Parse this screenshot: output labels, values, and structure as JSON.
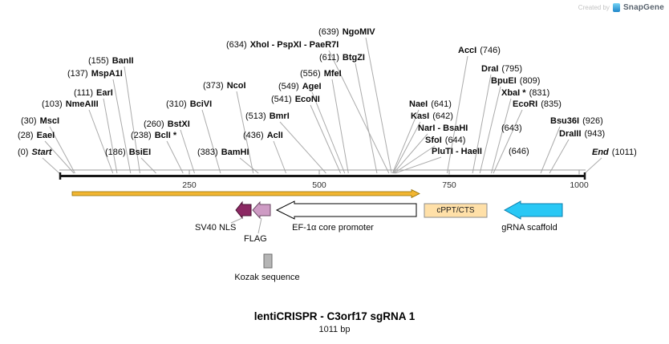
{
  "branding": {
    "created_by": "Created by",
    "brand": "SnapGene"
  },
  "title": {
    "name": "lentiCRISPR - C3orf17 sgRNA 1",
    "length": "1011 bp"
  },
  "colors": {
    "leader_line": "#ababab",
    "ruler_gray": "#9c9c9c",
    "sequence_black": "#161616",
    "tick_text": "#2e2e2e"
  },
  "map": {
    "length_bp": 1011,
    "ruler_ticks": [
      250,
      500,
      750,
      1000
    ],
    "sites": [
      {
        "bp": 0,
        "pos": "(0)",
        "name": "Start",
        "terminus": true
      },
      {
        "bp": 28,
        "pos": "(28)",
        "name": "EaeI"
      },
      {
        "bp": 30,
        "pos": "(30)",
        "name": "MscI"
      },
      {
        "bp": 103,
        "pos": "(103)",
        "name": "NmeAIII"
      },
      {
        "bp": 111,
        "pos": "(111)",
        "name": "EarI"
      },
      {
        "bp": 137,
        "pos": "(137)",
        "name": "MspA1I"
      },
      {
        "bp": 155,
        "pos": "(155)",
        "name": "BanII"
      },
      {
        "bp": 186,
        "pos": "(186)",
        "name": "BsiEI"
      },
      {
        "bp": 238,
        "pos": "(238)",
        "name": "BclI *"
      },
      {
        "bp": 260,
        "pos": "(260)",
        "name": "BstXI"
      },
      {
        "bp": 310,
        "pos": "(310)",
        "name": "BciVI"
      },
      {
        "bp": 373,
        "pos": "(373)",
        "name": "NcoI"
      },
      {
        "bp": 383,
        "pos": "(383)",
        "name": "BamHI"
      },
      {
        "bp": 436,
        "pos": "(436)",
        "name": "AclI"
      },
      {
        "bp": 513,
        "pos": "(513)",
        "name": "BmrI"
      },
      {
        "bp": 541,
        "pos": "(541)",
        "name": "EcoNI"
      },
      {
        "bp": 549,
        "pos": "(549)",
        "name": "AgeI"
      },
      {
        "bp": 556,
        "pos": "(556)",
        "name": "MfeI"
      },
      {
        "bp": 611,
        "pos": "(611)",
        "name": "BtgZI"
      },
      {
        "bp": 634,
        "pos": "(634)",
        "name": "XhoI - PspXI - PaeR7I"
      },
      {
        "bp": 639,
        "pos": "(639)",
        "name": "NgoMIV"
      },
      {
        "bp": 641,
        "pos": "(641)",
        "name": "NaeI"
      },
      {
        "bp": 642,
        "pos": "(642)",
        "name": "KasI"
      },
      {
        "bp": 643,
        "pos": "(643)",
        "name": "NarI - BsaHI"
      },
      {
        "bp": 644,
        "pos": "(644)",
        "name": "SfoI"
      },
      {
        "bp": 646,
        "pos": "(646)",
        "name": "PluTI - HaeII"
      },
      {
        "bp": 746,
        "pos": "(746)",
        "name": "AccI"
      },
      {
        "bp": 795,
        "pos": "(795)",
        "name": "DraI"
      },
      {
        "bp": 809,
        "pos": "(809)",
        "name": "BpuEI"
      },
      {
        "bp": 831,
        "pos": "(831)",
        "name": "XbaI *"
      },
      {
        "bp": 835,
        "pos": "(835)",
        "name": "EcoRI"
      },
      {
        "bp": 926,
        "pos": "(926)",
        "name": "Bsu36I"
      },
      {
        "bp": 943,
        "pos": "(943)",
        "name": "DraIII"
      },
      {
        "bp": 1011,
        "pos": "(1011)",
        "name": "End",
        "terminus": true
      }
    ],
    "features": [
      {
        "name": "SV40 NLS",
        "color": "#8C2863",
        "shape": "arrow-left"
      },
      {
        "name": "FLAG",
        "color": "#CE9BC4",
        "shape": "arrow-left"
      },
      {
        "name": "EF-1α core promoter",
        "color": "#FFFFFF",
        "shape": "arrow-left"
      },
      {
        "name": "cPPT/CTS",
        "color": "#FFE0A8",
        "shape": "box"
      },
      {
        "name": "gRNA scaffold",
        "color": "#29C8F5",
        "shape": "arrow-left"
      },
      {
        "name": "Kozak sequence",
        "color": "#B5B5B5",
        "shape": "box"
      },
      {
        "name": "",
        "color": "#F2B632",
        "shape": "arrow-right"
      }
    ]
  }
}
